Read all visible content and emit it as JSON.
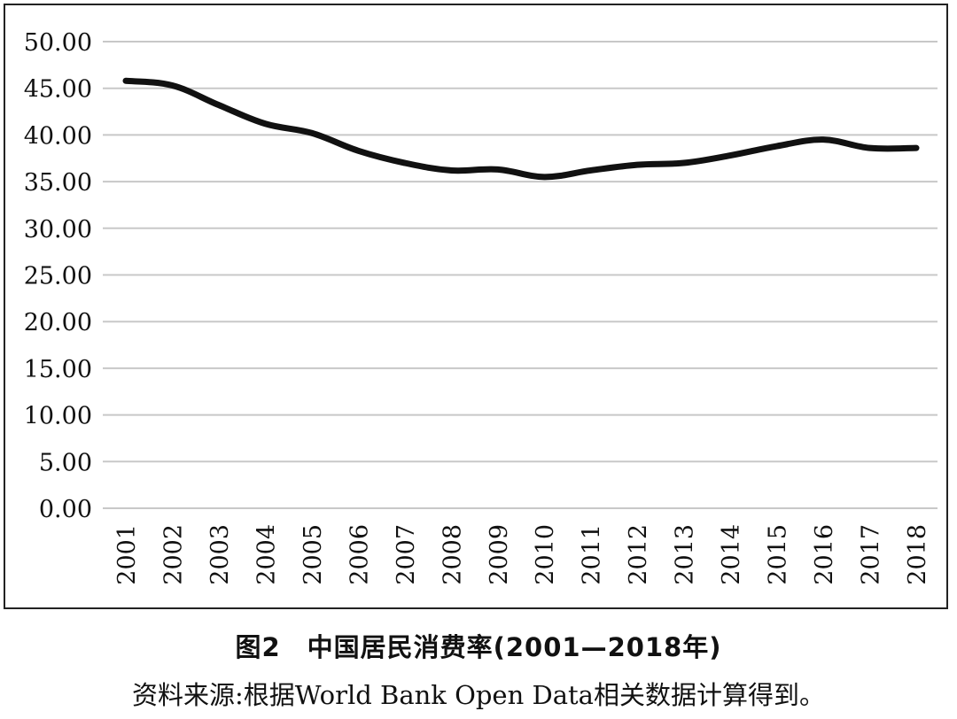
{
  "caption": "图2　中国居民消费率(2001—2018年)",
  "source_note": "资料来源:根据World Bank Open Data相关数据计算得到。",
  "chart_data": {
    "type": "line",
    "title": "",
    "xlabel": "",
    "ylabel": "",
    "categories": [
      "2001",
      "2002",
      "2003",
      "2004",
      "2005",
      "2006",
      "2007",
      "2008",
      "2009",
      "2010",
      "2011",
      "2012",
      "2013",
      "2014",
      "2015",
      "2016",
      "2017",
      "2018"
    ],
    "series": [
      {
        "values": [
          45.8,
          45.3,
          43.2,
          41.2,
          40.2,
          38.3,
          37.0,
          36.2,
          36.3,
          35.5,
          36.2,
          36.8,
          37.0,
          37.8,
          38.8,
          39.5,
          38.6,
          38.6
        ]
      }
    ],
    "ylim": [
      0,
      50
    ],
    "yticks": [
      "0.00",
      "5.00",
      "10.00",
      "15.00",
      "20.00",
      "25.00",
      "30.00",
      "35.00",
      "40.00",
      "45.00",
      "50.00"
    ],
    "grid": true,
    "line_color": "#111111",
    "grid_color": "#c8c8c8"
  }
}
